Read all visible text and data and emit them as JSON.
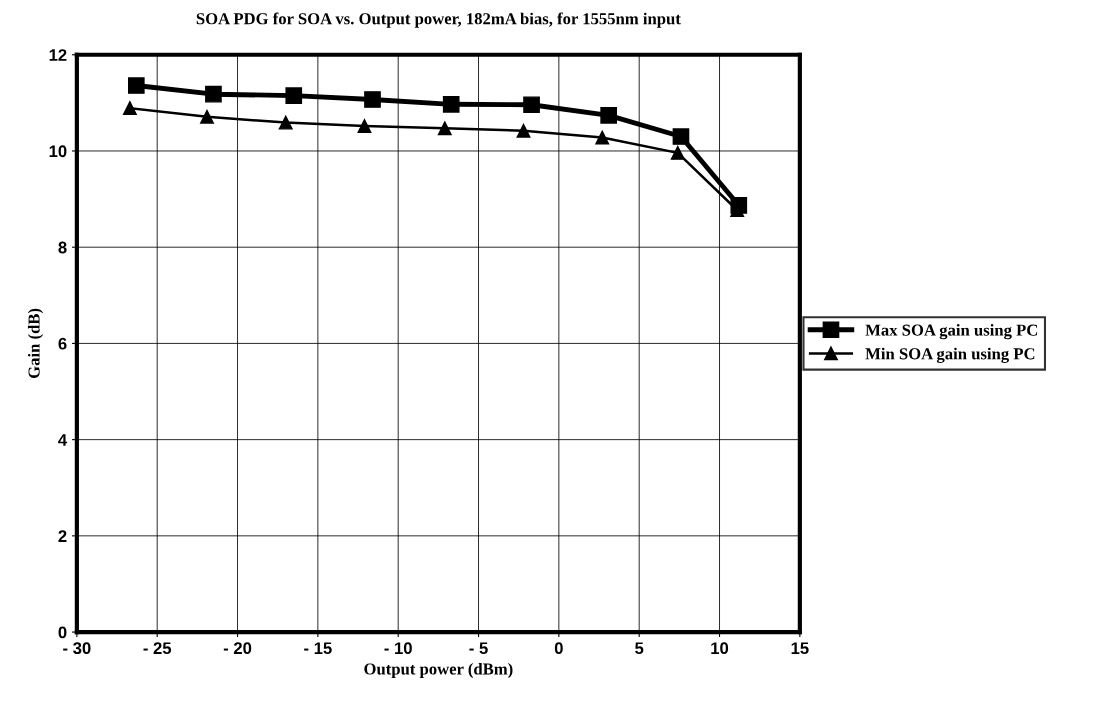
{
  "chart_data": {
    "type": "line",
    "title": "SOA PDG for SOA vs. Output power, 182mA bias, for 1555nm input",
    "xlabel": "Output power (dBm)",
    "ylabel": "Gain (dB)",
    "series": [
      {
        "name": "Max SOA gain using PC",
        "color": "#000000",
        "marker": "square",
        "x": [
          -26.3,
          -21.5,
          -16.5,
          -11.6,
          -6.7,
          -1.7,
          3.1,
          7.6,
          11.2
        ],
        "values": [
          11.36,
          11.18,
          11.15,
          11.07,
          10.97,
          10.96,
          10.74,
          10.3,
          8.87
        ]
      },
      {
        "name": "Min SOA gain using PC",
        "color": "#000000",
        "marker": "triangle",
        "x": [
          -26.7,
          -21.9,
          -17.0,
          -12.1,
          -7.1,
          -2.2,
          2.7,
          7.4,
          11.1
        ],
        "values": [
          10.89,
          10.71,
          10.59,
          10.52,
          10.47,
          10.42,
          10.28,
          9.96,
          8.77
        ]
      }
    ],
    "xlim": [
      -30,
      15
    ],
    "xticks": [
      {
        "value": -30,
        "label": "- 30"
      },
      {
        "value": -25,
        "label": "- 25"
      },
      {
        "value": -20,
        "label": "- 20"
      },
      {
        "value": -15,
        "label": "- 15"
      },
      {
        "value": -10,
        "label": "- 10"
      },
      {
        "value": -5,
        "label": "- 5"
      },
      0,
      5,
      10,
      15
    ],
    "ylim": [
      0,
      12
    ],
    "yticks": [
      0,
      2,
      4,
      6,
      8,
      10,
      12
    ],
    "grid": true,
    "legend": "right"
  }
}
